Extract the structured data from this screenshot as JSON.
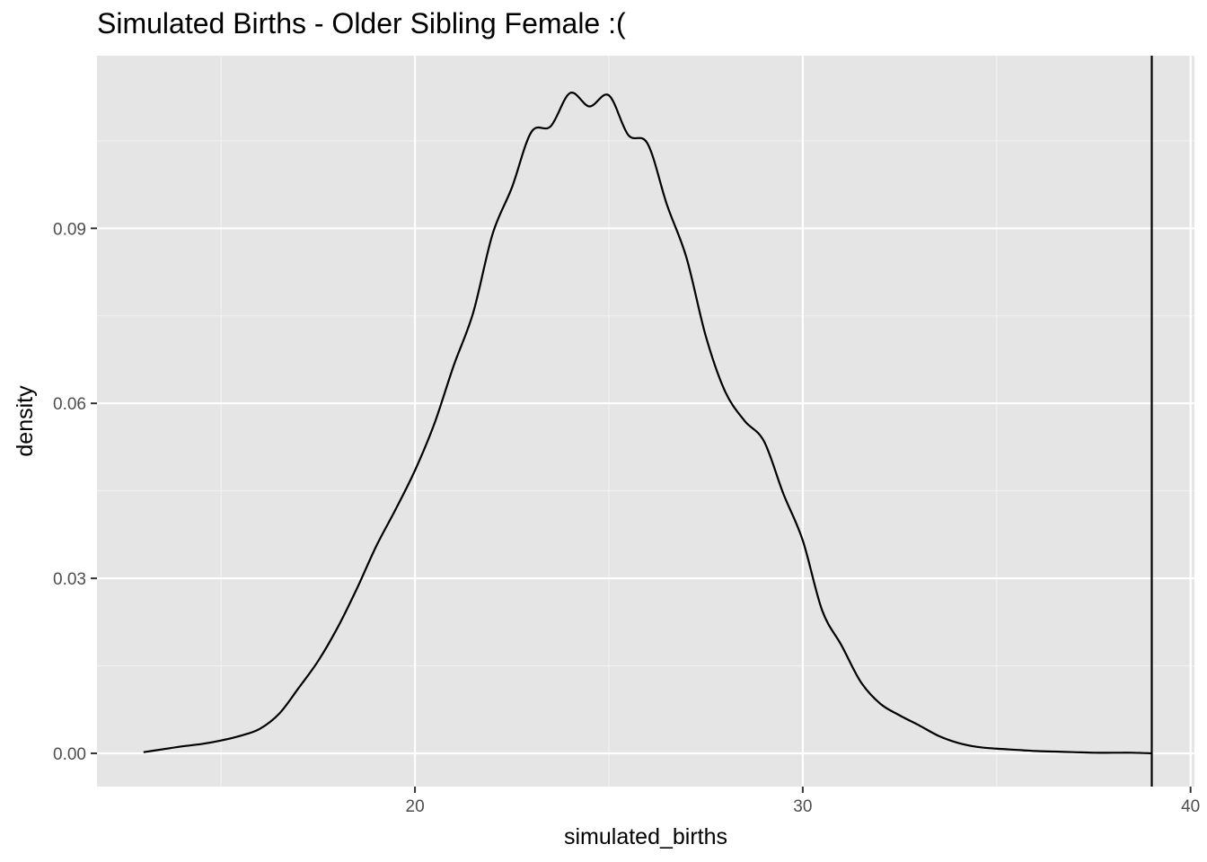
{
  "chart_data": {
    "type": "line",
    "title": "Simulated Births - Older Sibling Female :(",
    "xlabel": "simulated_births",
    "ylabel": "density",
    "xlim": [
      11.8,
      40.1
    ],
    "ylim": [
      -0.0057,
      0.1196
    ],
    "x_ticks": [
      20,
      30,
      40
    ],
    "x_tick_labels": [
      "20",
      "30",
      "40"
    ],
    "x_minor_ticks": [
      15,
      25,
      35
    ],
    "y_ticks": [
      0.0,
      0.03,
      0.06,
      0.09
    ],
    "y_tick_labels": [
      "0.00",
      "0.03",
      "0.06",
      "0.09"
    ],
    "y_minor_ticks": [
      0.015,
      0.045,
      0.075,
      0.105
    ],
    "grid": true,
    "legend": "none",
    "vline": {
      "x": 39
    },
    "series": [
      {
        "x": [
          13,
          13.5,
          14,
          14.5,
          15,
          15.5,
          16,
          16.5,
          17,
          17.5,
          18,
          18.5,
          19,
          19.5,
          20,
          20.5,
          21,
          21.5,
          22,
          22.5,
          23,
          23.5,
          24,
          24.5,
          25,
          25.5,
          26,
          26.5,
          27,
          27.5,
          28,
          28.5,
          29,
          29.5,
          30,
          30.5,
          31,
          31.5,
          32,
          32.5,
          33,
          33.5,
          34,
          34.5,
          35,
          35.5,
          36,
          36.5,
          37,
          37.5,
          38,
          38.5,
          39
        ],
        "y": [
          0.0002,
          0.0007,
          0.0012,
          0.0016,
          0.0022,
          0.003,
          0.0042,
          0.0068,
          0.0112,
          0.0158,
          0.0215,
          0.0282,
          0.0355,
          0.0418,
          0.0485,
          0.0565,
          0.0665,
          0.0755,
          0.089,
          0.097,
          0.1065,
          0.1075,
          0.1132,
          0.1109,
          0.1128,
          0.106,
          0.1045,
          0.094,
          0.085,
          0.0715,
          0.062,
          0.057,
          0.0535,
          0.0445,
          0.0365,
          0.0245,
          0.0185,
          0.0122,
          0.0085,
          0.0065,
          0.0048,
          0.003,
          0.0018,
          0.0011,
          0.0008,
          0.0006,
          0.0004,
          0.0003,
          0.0002,
          0.0001,
          0.0001,
          0.0001,
          0.0
        ]
      }
    ]
  }
}
